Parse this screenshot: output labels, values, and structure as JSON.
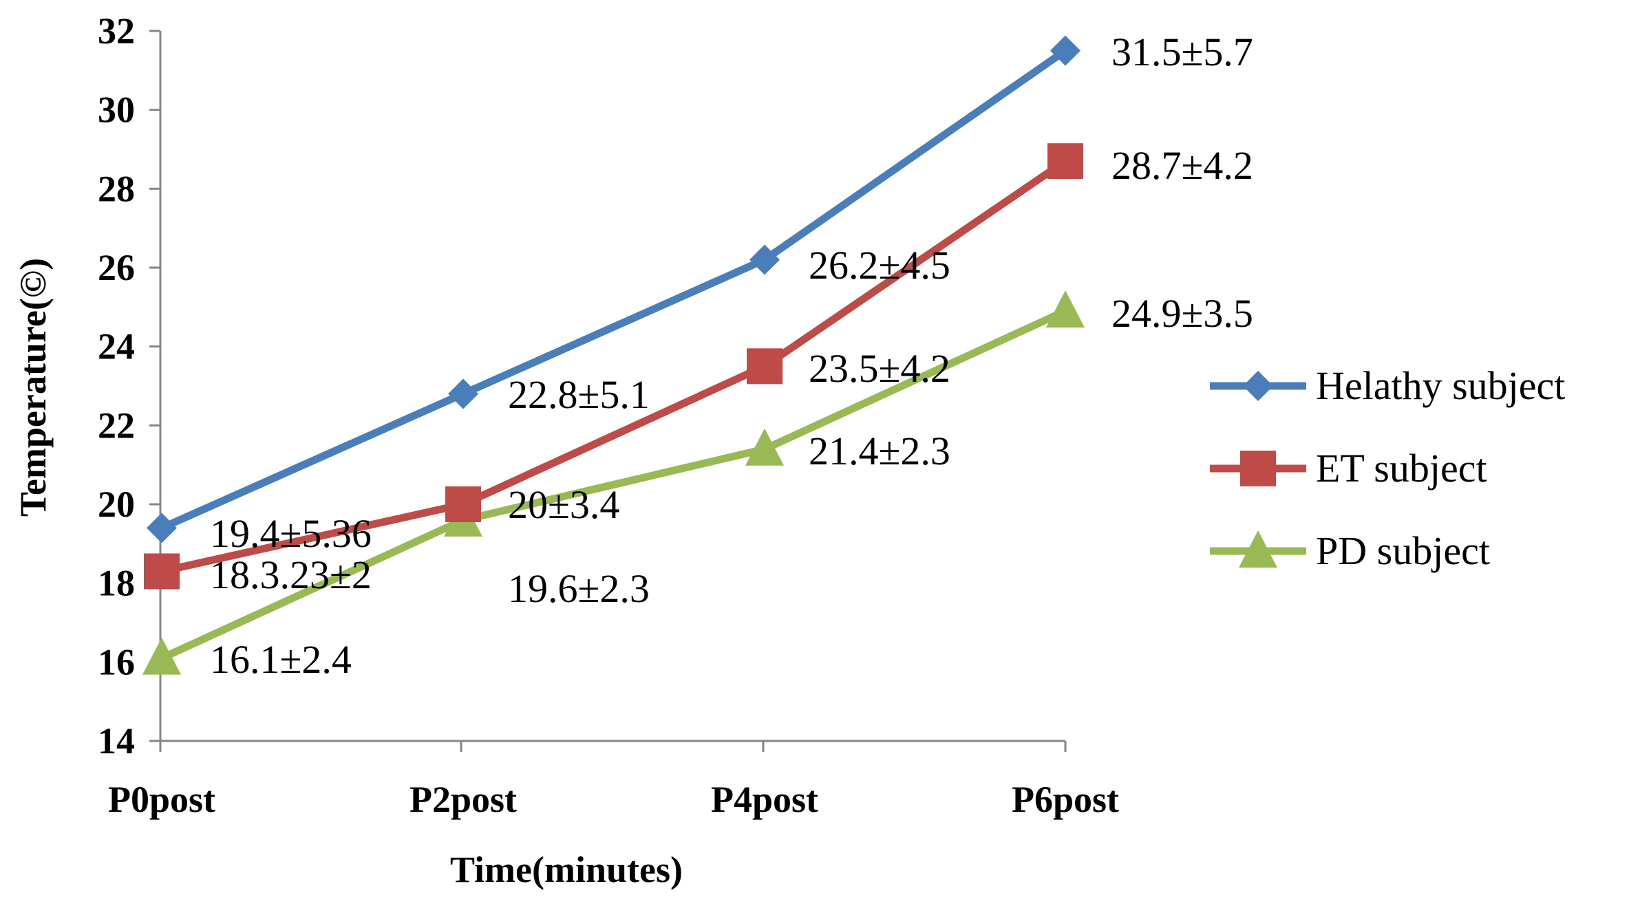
{
  "chart_data": {
    "type": "line",
    "title": "",
    "xlabel": "Time(minutes)",
    "ylabel": "Temperature(©)",
    "categories": [
      "P0post",
      "P2post",
      "P4post",
      "P6post"
    ],
    "ylim": [
      14,
      32
    ],
    "yticks": [
      14,
      16,
      18,
      20,
      22,
      24,
      26,
      28,
      30,
      32
    ],
    "grid": false,
    "legend_position": "right",
    "series": [
      {
        "name": "Helathy subject",
        "color": "#4a7ebb",
        "marker": "diamond",
        "values": [
          19.4,
          22.8,
          26.2,
          31.5
        ],
        "labels": [
          "19.4±5.36",
          "22.8±5.1",
          "26.2±4.5",
          "31.5±5.7"
        ]
      },
      {
        "name": "ET subject",
        "color": "#be4b48",
        "marker": "square",
        "values": [
          18.3,
          20,
          23.5,
          28.7
        ],
        "labels": [
          "18.3.23±2",
          "20±3.4",
          "23.5±4.2",
          "28.7±4.2"
        ]
      },
      {
        "name": "PD subject",
        "color": "#98b954",
        "marker": "triangle",
        "values": [
          16.1,
          19.6,
          21.4,
          24.9
        ],
        "labels": [
          "16.1±2.4",
          "19.6±2.3",
          "21.4±2.3",
          "24.9±3.5"
        ]
      }
    ]
  }
}
